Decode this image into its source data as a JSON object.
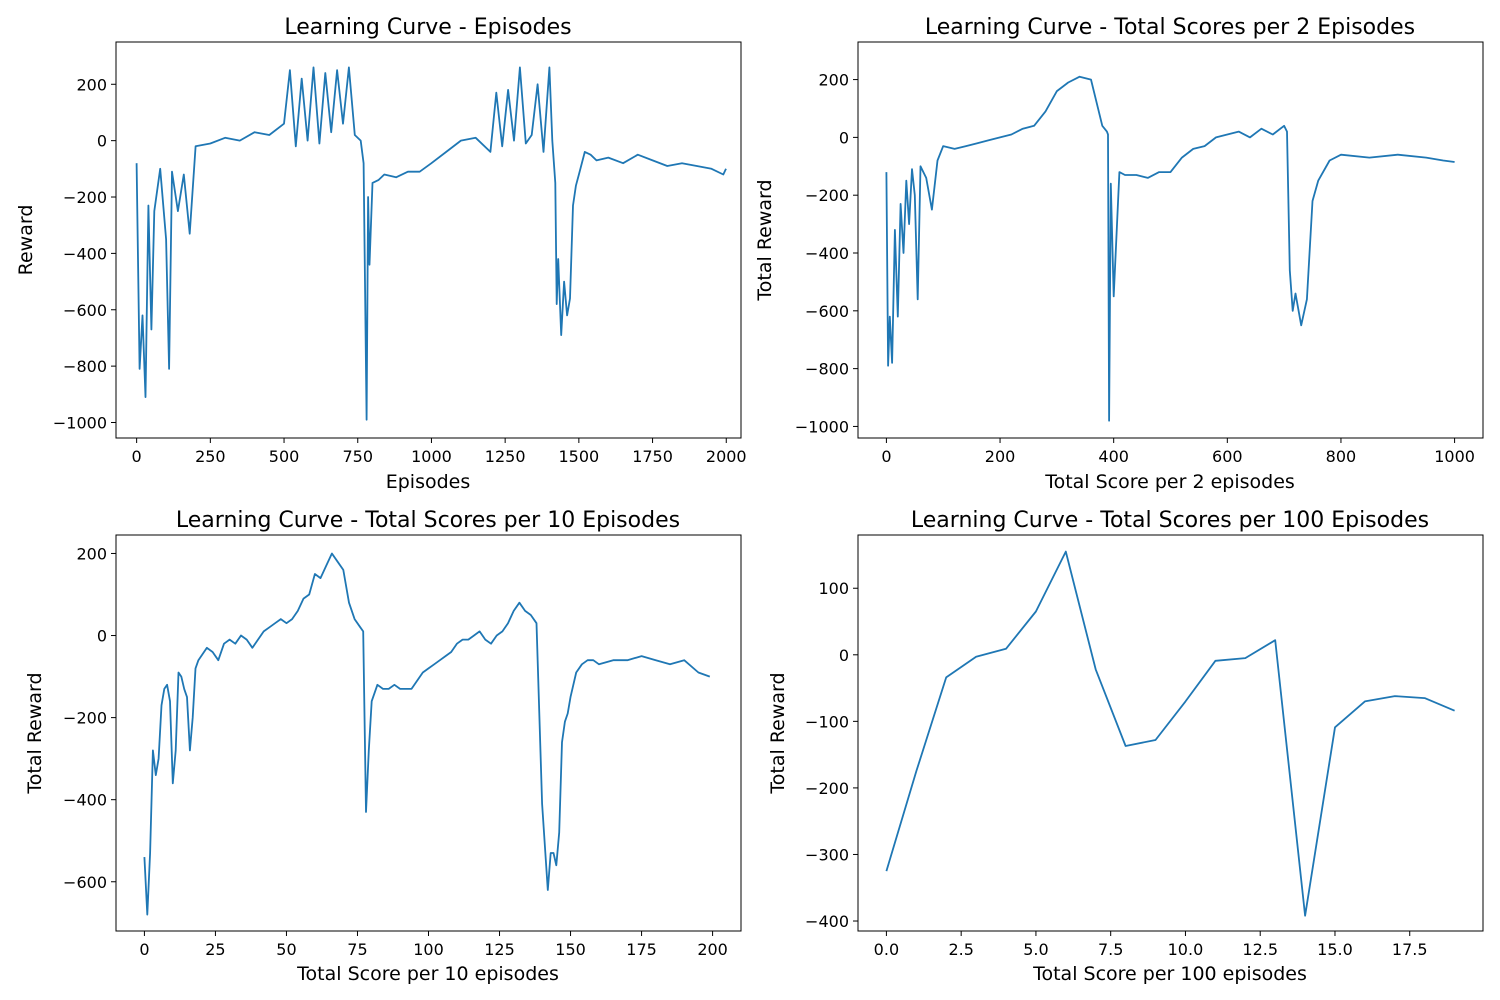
{
  "figure": {
    "background": "#ffffff",
    "line_color": "#1f77b4"
  },
  "chart_data": [
    {
      "type": "line",
      "title": "Learning Curve - Episodes",
      "xlabel": "Episodes",
      "ylabel": "Reward",
      "xlim": [
        -70,
        2050
      ],
      "ylim": [
        -1055,
        350
      ],
      "xticks": [
        0,
        250,
        500,
        750,
        1000,
        1250,
        1500,
        1750,
        2000
      ],
      "xtick_labels": [
        "0",
        "250",
        "500",
        "750",
        "1000",
        "1250",
        "1500",
        "1750",
        "2000"
      ],
      "yticks": [
        -1000,
        -800,
        -600,
        -400,
        -200,
        0,
        200
      ],
      "ytick_labels": [
        "−1000",
        "−800",
        "−600",
        "−400",
        "−200",
        "0",
        "200"
      ],
      "grid": false,
      "x": [
        0,
        10,
        20,
        30,
        40,
        50,
        60,
        80,
        100,
        110,
        120,
        140,
        160,
        180,
        200,
        250,
        300,
        350,
        400,
        450,
        500,
        520,
        540,
        560,
        580,
        600,
        620,
        640,
        660,
        680,
        700,
        720,
        740,
        760,
        770,
        780,
        785,
        790,
        800,
        820,
        840,
        880,
        920,
        960,
        1000,
        1050,
        1100,
        1150,
        1200,
        1220,
        1240,
        1260,
        1280,
        1300,
        1320,
        1340,
        1360,
        1380,
        1400,
        1410,
        1420,
        1425,
        1430,
        1440,
        1450,
        1460,
        1470,
        1480,
        1490,
        1500,
        1520,
        1540,
        1560,
        1600,
        1650,
        1700,
        1750,
        1800,
        1850,
        1900,
        1950,
        1990,
        1999
      ],
      "series": [
        {
          "values": [
            -80,
            -810,
            -620,
            -910,
            -230,
            -670,
            -250,
            -100,
            -350,
            -810,
            -110,
            -250,
            -120,
            -330,
            -20,
            -10,
            10,
            0,
            30,
            20,
            60,
            250,
            -20,
            220,
            0,
            260,
            -10,
            240,
            30,
            250,
            60,
            260,
            20,
            0,
            -80,
            -990,
            -200,
            -440,
            -150,
            -140,
            -120,
            -130,
            -110,
            -110,
            -80,
            -40,
            0,
            10,
            -40,
            170,
            -20,
            180,
            0,
            260,
            -10,
            20,
            200,
            -40,
            260,
            0,
            -150,
            -580,
            -420,
            -690,
            -500,
            -620,
            -560,
            -230,
            -160,
            -120,
            -40,
            -50,
            -70,
            -60,
            -80,
            -50,
            -70,
            -90,
            -80,
            -90,
            -100,
            -120,
            -100
          ]
        }
      ]
    },
    {
      "type": "line",
      "title": "Learning Curve - Total Scores per 2 Episodes",
      "xlabel": "Total Score per 2 episodes",
      "ylabel": "Total Reward",
      "xlim": [
        -50,
        1050
      ],
      "ylim": [
        -1040,
        330
      ],
      "xticks": [
        0,
        200,
        400,
        600,
        800,
        1000
      ],
      "xtick_labels": [
        "0",
        "200",
        "400",
        "600",
        "800",
        "1000"
      ],
      "yticks": [
        -1000,
        -800,
        -600,
        -400,
        -200,
        0,
        200
      ],
      "ytick_labels": [
        "−1000",
        "−800",
        "−600",
        "−400",
        "−200",
        "0",
        "200"
      ],
      "grid": false,
      "x": [
        0,
        3,
        6,
        10,
        15,
        20,
        25,
        30,
        35,
        40,
        45,
        50,
        55,
        60,
        70,
        80,
        90,
        100,
        120,
        140,
        160,
        180,
        200,
        220,
        240,
        260,
        280,
        300,
        320,
        340,
        360,
        380,
        388,
        390,
        392,
        395,
        400,
        410,
        420,
        440,
        460,
        480,
        500,
        520,
        540,
        560,
        580,
        600,
        620,
        640,
        660,
        680,
        700,
        705,
        710,
        715,
        720,
        730,
        740,
        750,
        760,
        780,
        800,
        850,
        900,
        950,
        980,
        1000
      ],
      "series": [
        {
          "values": [
            -120,
            -790,
            -620,
            -780,
            -320,
            -620,
            -230,
            -400,
            -150,
            -300,
            -110,
            -200,
            -560,
            -100,
            -140,
            -250,
            -80,
            -30,
            -40,
            -30,
            -20,
            -10,
            0,
            10,
            30,
            40,
            90,
            160,
            190,
            210,
            200,
            40,
            20,
            10,
            -980,
            -160,
            -550,
            -120,
            -130,
            -130,
            -140,
            -120,
            -120,
            -70,
            -40,
            -30,
            0,
            10,
            20,
            0,
            30,
            10,
            40,
            20,
            -460,
            -600,
            -540,
            -650,
            -560,
            -220,
            -150,
            -80,
            -60,
            -70,
            -60,
            -70,
            -80,
            -85
          ]
        }
      ]
    },
    {
      "type": "line",
      "title": "Learning Curve - Total Scores per 10 Episodes",
      "xlabel": "Total Score per 10 episodes",
      "ylabel": "Total Reward",
      "xlim": [
        -10,
        210
      ],
      "ylim": [
        -720,
        245
      ],
      "xticks": [
        0,
        25,
        50,
        75,
        100,
        125,
        150,
        175,
        200
      ],
      "xtick_labels": [
        "0",
        "25",
        "50",
        "75",
        "100",
        "125",
        "150",
        "175",
        "200"
      ],
      "yticks": [
        -600,
        -400,
        -200,
        0,
        200
      ],
      "ytick_labels": [
        "−600",
        "−400",
        "−200",
        "0",
        "200"
      ],
      "grid": false,
      "x": [
        0,
        1,
        2,
        3,
        4,
        5,
        6,
        7,
        8,
        9,
        10,
        11,
        12,
        13,
        14,
        15,
        16,
        17,
        18,
        19,
        20,
        22,
        24,
        26,
        28,
        30,
        32,
        34,
        36,
        38,
        40,
        42,
        44,
        46,
        48,
        50,
        52,
        54,
        56,
        58,
        60,
        62,
        64,
        66,
        68,
        70,
        72,
        74,
        76,
        77,
        78,
        79,
        80,
        82,
        84,
        86,
        88,
        90,
        92,
        94,
        96,
        98,
        100,
        102,
        104,
        106,
        108,
        110,
        112,
        114,
        116,
        118,
        120,
        122,
        124,
        126,
        128,
        130,
        132,
        134,
        136,
        138,
        140,
        142,
        143,
        144,
        145,
        146,
        147,
        148,
        149,
        150,
        152,
        154,
        156,
        158,
        160,
        165,
        170,
        175,
        180,
        185,
        190,
        195,
        199
      ],
      "series": [
        {
          "values": [
            -540,
            -680,
            -530,
            -280,
            -340,
            -300,
            -170,
            -130,
            -120,
            -160,
            -360,
            -280,
            -90,
            -100,
            -130,
            -150,
            -280,
            -200,
            -80,
            -60,
            -50,
            -30,
            -40,
            -60,
            -20,
            -10,
            -20,
            0,
            -10,
            -30,
            -10,
            10,
            20,
            30,
            40,
            30,
            40,
            60,
            90,
            100,
            150,
            140,
            170,
            200,
            180,
            160,
            80,
            40,
            20,
            10,
            -430,
            -280,
            -160,
            -120,
            -130,
            -130,
            -120,
            -130,
            -130,
            -130,
            -110,
            -90,
            -80,
            -70,
            -60,
            -50,
            -40,
            -20,
            -10,
            -10,
            0,
            10,
            -10,
            -20,
            0,
            10,
            30,
            60,
            80,
            60,
            50,
            30,
            -410,
            -620,
            -530,
            -530,
            -560,
            -480,
            -260,
            -210,
            -190,
            -150,
            -90,
            -70,
            -60,
            -60,
            -70,
            -60,
            -60,
            -50,
            -60,
            -70,
            -60,
            -90,
            -100
          ]
        }
      ]
    },
    {
      "type": "line",
      "title": "Learning Curve - Total Scores per 100 Episodes",
      "xlabel": "Total Score per 100 episodes",
      "ylabel": "Total Reward",
      "xlim": [
        -0.95,
        19.95
      ],
      "ylim": [
        -415,
        180
      ],
      "xticks": [
        0,
        2.5,
        5,
        7.5,
        10,
        12.5,
        15,
        17.5
      ],
      "xtick_labels": [
        "0.0",
        "2.5",
        "5.0",
        "7.5",
        "10.0",
        "12.5",
        "15.0",
        "17.5"
      ],
      "yticks": [
        -400,
        -300,
        -200,
        -100,
        0,
        100
      ],
      "ytick_labels": [
        "−400",
        "−300",
        "−200",
        "−100",
        "0",
        "100"
      ],
      "grid": false,
      "x": [
        0,
        1,
        2,
        3,
        4,
        5,
        6,
        7,
        8,
        9,
        10,
        11,
        12,
        13,
        14,
        15,
        16,
        17,
        18,
        19
      ],
      "series": [
        {
          "values": [
            -325,
            -175,
            -34,
            -3,
            9,
            65,
            155,
            -22,
            -137,
            -128,
            -70,
            -9,
            -5,
            22,
            -392,
            -109,
            -70,
            -62,
            -65,
            -84
          ]
        }
      ]
    }
  ]
}
